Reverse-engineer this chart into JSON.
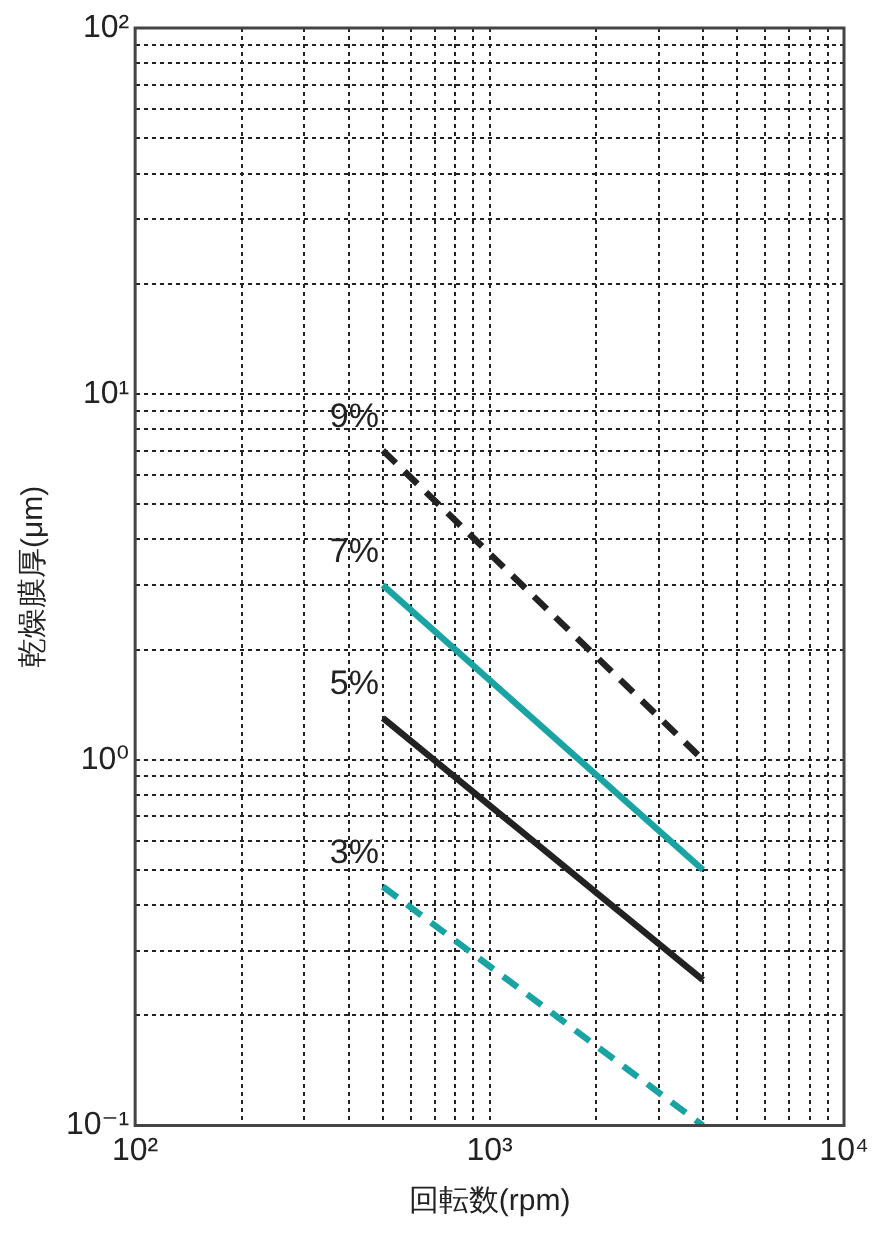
{
  "chart_data": {
    "type": "line",
    "xlabel": "回転数(rpm)",
    "ylabel": "乾燥膜厚(μm)",
    "log": "xy",
    "grid": true,
    "legend": false,
    "marker": "none",
    "xlim": [
      100,
      10000
    ],
    "ylim": [
      0.1,
      100
    ],
    "xticks": [
      {
        "value": 100,
        "label": "10²"
      },
      {
        "value": 200,
        "label": null
      },
      {
        "value": 300,
        "label": null
      },
      {
        "value": 400,
        "label": null
      },
      {
        "value": 500,
        "label": null
      },
      {
        "value": 600,
        "label": null
      },
      {
        "value": 700,
        "label": null
      },
      {
        "value": 800,
        "label": null
      },
      {
        "value": 900,
        "label": null
      },
      {
        "value": 1000,
        "label": "10³"
      },
      {
        "value": 2000,
        "label": null
      },
      {
        "value": 3000,
        "label": null
      },
      {
        "value": 4000,
        "label": null
      },
      {
        "value": 5000,
        "label": null
      },
      {
        "value": 6000,
        "label": null
      },
      {
        "value": 7000,
        "label": null
      },
      {
        "value": 8000,
        "label": null
      },
      {
        "value": 9000,
        "label": null
      },
      {
        "value": 10000,
        "label": "10⁴"
      }
    ],
    "yticks": [
      {
        "value": 0.1,
        "label": "10⁻¹"
      },
      {
        "value": 0.2,
        "label": null
      },
      {
        "value": 0.3,
        "label": null
      },
      {
        "value": 0.4,
        "label": null
      },
      {
        "value": 0.5,
        "label": null
      },
      {
        "value": 0.6,
        "label": null
      },
      {
        "value": 0.7,
        "label": null
      },
      {
        "value": 0.8,
        "label": null
      },
      {
        "value": 0.9,
        "label": null
      },
      {
        "value": 1,
        "label": "10⁰"
      },
      {
        "value": 2,
        "label": null
      },
      {
        "value": 3,
        "label": null
      },
      {
        "value": 4,
        "label": null
      },
      {
        "value": 5,
        "label": null
      },
      {
        "value": 6,
        "label": null
      },
      {
        "value": 7,
        "label": null
      },
      {
        "value": 8,
        "label": null
      },
      {
        "value": 9,
        "label": null
      },
      {
        "value": 10,
        "label": "10¹"
      },
      {
        "value": 20,
        "label": null
      },
      {
        "value": 30,
        "label": null
      },
      {
        "value": 40,
        "label": null
      },
      {
        "value": 50,
        "label": null
      },
      {
        "value": 60,
        "label": null
      },
      {
        "value": 70,
        "label": null
      },
      {
        "value": 80,
        "label": null
      },
      {
        "value": 90,
        "label": null
      },
      {
        "value": 100,
        "label": "10²"
      }
    ],
    "x": [
      500,
      4000
    ],
    "series": [
      {
        "name": "9%",
        "color": "#222222",
        "line_style": "dashed",
        "values": [
          7,
          1
        ]
      },
      {
        "name": "7%",
        "color": "#1aa3a3",
        "line_style": "solid",
        "values": [
          3,
          0.5
        ]
      },
      {
        "name": "5%",
        "color": "#222222",
        "line_style": "solid",
        "values": [
          1.3,
          0.25
        ]
      },
      {
        "name": "3%",
        "color": "#1aa3a3",
        "line_style": "dashed",
        "values": [
          0.45,
          0.1
        ]
      }
    ]
  }
}
